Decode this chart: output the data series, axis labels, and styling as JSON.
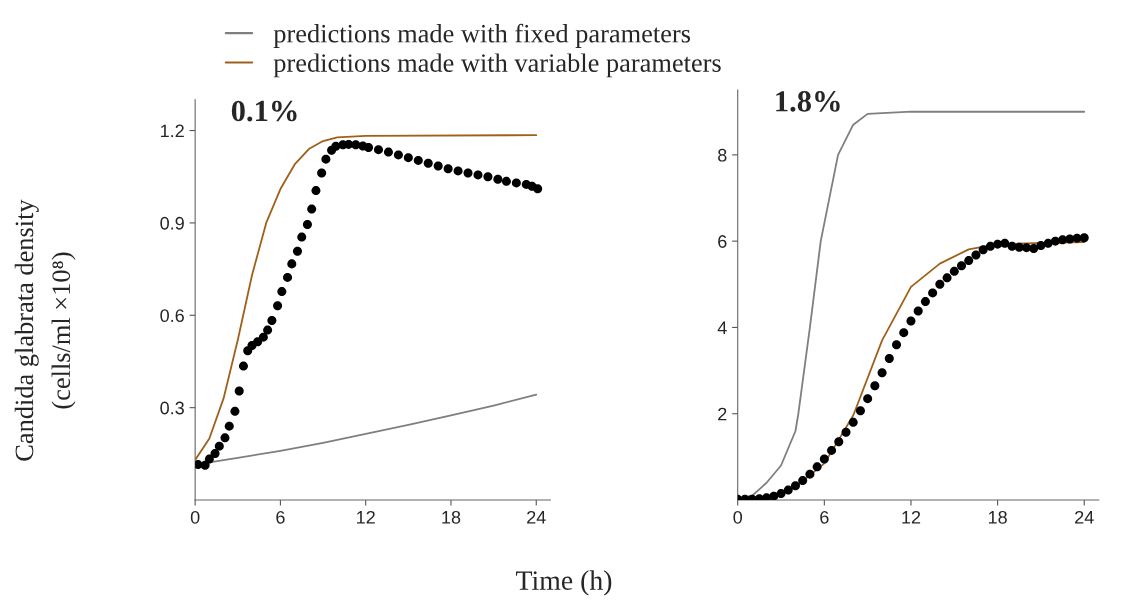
{
  "chart_data": [
    {
      "type": "line",
      "title": "0.1%",
      "ylabel": "Candida glabrata density\n(cells/ml ×10⁸)",
      "xlim": [
        0,
        25
      ],
      "ylim": [
        0,
        1.3
      ],
      "xticks": [
        0,
        6,
        12,
        18,
        24
      ],
      "yticks": [
        0.3,
        0.6,
        0.9,
        1.2
      ],
      "legend": "top",
      "grid": false,
      "series": [
        {
          "name": "predictions made with fixed parameters",
          "color": "#7f7f7f",
          "x": [
            0,
            3,
            6,
            9,
            12,
            15,
            18,
            21,
            24
          ],
          "values": [
            0.115,
            0.137,
            0.16,
            0.186,
            0.215,
            0.244,
            0.275,
            0.307,
            0.342
          ]
        },
        {
          "name": "predictions made with variable parameters",
          "color": "#a0601a",
          "x": [
            0,
            1,
            2,
            3,
            4,
            5,
            6,
            7,
            8,
            9,
            10,
            12,
            24
          ],
          "values": [
            0.13,
            0.2,
            0.33,
            0.52,
            0.73,
            0.9,
            1.01,
            1.09,
            1.14,
            1.166,
            1.178,
            1.183,
            1.185
          ]
        },
        {
          "type": "scatter",
          "color": "#000000",
          "marker": "circle",
          "x": [
            0.2,
            0.7,
            1.0,
            1.4,
            1.7,
            2.1,
            2.4,
            2.8,
            3.1,
            3.4,
            3.7,
            4.0,
            4.4,
            4.8,
            5.1,
            5.4,
            5.8,
            6.1,
            6.5,
            6.8,
            7.2,
            7.5,
            7.9,
            8.2,
            8.5,
            8.9,
            9.2,
            9.6,
            9.9,
            10.4,
            10.8,
            11.3,
            11.8,
            12.2,
            12.9,
            13.6,
            14.3,
            15.0,
            15.7,
            16.4,
            17.1,
            17.8,
            18.5,
            19.2,
            19.9,
            20.6,
            21.3,
            21.9,
            22.6,
            23.3,
            23.7,
            24.1
          ],
          "values": [
            0.115,
            0.113,
            0.133,
            0.151,
            0.175,
            0.202,
            0.24,
            0.288,
            0.354,
            0.435,
            0.485,
            0.502,
            0.514,
            0.529,
            0.552,
            0.583,
            0.631,
            0.677,
            0.723,
            0.767,
            0.808,
            0.854,
            0.895,
            0.945,
            1.005,
            1.062,
            1.107,
            1.136,
            1.149,
            1.154,
            1.155,
            1.154,
            1.15,
            1.145,
            1.138,
            1.13,
            1.121,
            1.112,
            1.103,
            1.094,
            1.085,
            1.076,
            1.069,
            1.062,
            1.056,
            1.05,
            1.042,
            1.035,
            1.03,
            1.025,
            1.019,
            1.011
          ]
        }
      ]
    },
    {
      "type": "line",
      "title": "1.8%",
      "xlabel": "Time (h)",
      "xlim": [
        0,
        25
      ],
      "ylim": [
        0,
        9.5
      ],
      "xticks": [
        0,
        6,
        12,
        18,
        24
      ],
      "yticks": [
        2,
        4,
        6,
        8
      ],
      "grid": false,
      "series": [
        {
          "color": "#7f7f7f",
          "x": [
            0,
            1,
            2,
            3,
            4,
            4.2,
            5,
            5.75,
            6.95,
            8,
            9,
            12,
            24
          ],
          "values": [
            0.02,
            0.1,
            0.4,
            0.8,
            1.6,
            2.0,
            4.0,
            6.0,
            8.0,
            8.7,
            8.95,
            9.0,
            9.0
          ]
        },
        {
          "color": "#a0601a",
          "x": [
            0,
            2,
            4,
            6,
            7,
            8,
            10,
            12,
            14,
            16,
            18,
            24
          ],
          "values": [
            0,
            0.05,
            0.3,
            0.85,
            1.4,
            1.96,
            3.7,
            4.94,
            5.48,
            5.81,
            5.93,
            5.98
          ]
        },
        {
          "type": "scatter",
          "color": "#000000",
          "marker": "circle",
          "x": [
            0,
            0.5,
            1,
            1.5,
            2,
            2.5,
            3,
            3.5,
            4,
            4.5,
            5,
            5.5,
            6,
            6.5,
            7,
            7.5,
            8,
            8.5,
            9,
            9.5,
            10,
            10.5,
            11,
            11.5,
            12,
            12.5,
            13,
            13.5,
            14,
            14.5,
            15,
            15.5,
            16,
            16.5,
            17,
            17.5,
            18,
            18.5,
            19,
            19.5,
            20,
            20.5,
            21,
            21.5,
            22,
            22.5,
            23,
            23.5,
            24
          ],
          "values": [
            0.02,
            0.02,
            0.02,
            0.03,
            0.05,
            0.09,
            0.15,
            0.23,
            0.33,
            0.45,
            0.6,
            0.77,
            0.95,
            1.15,
            1.35,
            1.57,
            1.8,
            2.07,
            2.35,
            2.65,
            2.95,
            3.28,
            3.6,
            3.88,
            4.15,
            4.38,
            4.6,
            4.8,
            5.0,
            5.15,
            5.3,
            5.43,
            5.55,
            5.68,
            5.8,
            5.88,
            5.93,
            5.95,
            5.88,
            5.86,
            5.85,
            5.83,
            5.9,
            5.95,
            6.0,
            6.03,
            6.05,
            6.07,
            6.08
          ]
        }
      ]
    }
  ]
}
